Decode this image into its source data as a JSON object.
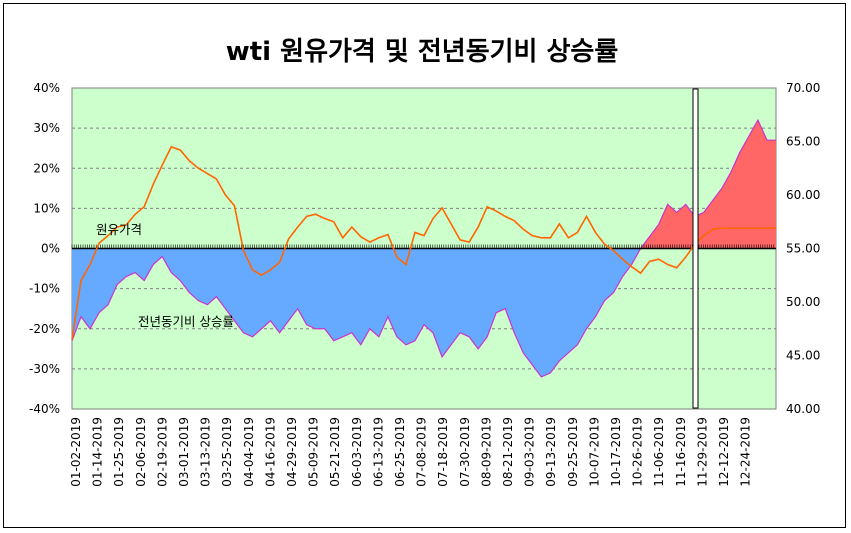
{
  "chart_data": {
    "type": "line+area",
    "title": "wti 원유가격 및 전년동기비 상승률",
    "y_left": {
      "ticks": [
        "40%",
        "30%",
        "20%",
        "10%",
        "0%",
        "-10%",
        "-20%",
        "-30%",
        "-40%"
      ],
      "range": [
        -40,
        40
      ],
      "unit": "%"
    },
    "y_right": {
      "ticks": [
        "70.00",
        "65.00",
        "60.00",
        "55.00",
        "50.00",
        "45.00",
        "40.00"
      ],
      "range": [
        40,
        70
      ]
    },
    "x_labels": [
      "01-02-2019",
      "01-14-2019",
      "01-25-2019",
      "02-06-2019",
      "02-19-2019",
      "03-01-2019",
      "03-13-2019",
      "03-25-2019",
      "04-04-2019",
      "04-16-2019",
      "04-29-2019",
      "05-09-2019",
      "05-21-2019",
      "06-03-2019",
      "06-13-2019",
      "06-25-2019",
      "07-08-2019",
      "07-18-2019",
      "07-30-2019",
      "08-09-2019",
      "08-21-2019",
      "09-03-2019",
      "09-13-2019",
      "09-25-2019",
      "10-07-2019",
      "10-17-2019",
      "10-26-2019",
      "11-06-2019",
      "11-16-2019",
      "11-29-2019",
      "12-12-2019",
      "12-24-2019"
    ],
    "series": [
      {
        "name": "원유가격",
        "axis": "right",
        "color": "#FF6600",
        "values": [
          46.5,
          52.0,
          53.5,
          55.5,
          56.2,
          57.0,
          57.2,
          58.2,
          58.9,
          61.0,
          62.8,
          64.5,
          64.2,
          63.2,
          62.5,
          62.0,
          61.5,
          60.0,
          59.0,
          54.8,
          53.0,
          52.5,
          53.0,
          53.7,
          55.9,
          57.0,
          58.0,
          58.2,
          57.8,
          57.5,
          56.0,
          57.0,
          56.1,
          55.6,
          56.0,
          56.3,
          54.2,
          53.5,
          56.5,
          56.2,
          57.8,
          58.8,
          57.3,
          55.8,
          55.6,
          57.0,
          58.9,
          58.5,
          58.0,
          57.6,
          56.8,
          56.2,
          56.0,
          56.0,
          57.3,
          56.0,
          56.5,
          58.0,
          56.5,
          55.4,
          54.8,
          54.0,
          53.3,
          52.7,
          53.8,
          54.0,
          53.5,
          53.2,
          54.2,
          55.4,
          56.2,
          56.8,
          56.9,
          56.9,
          56.9,
          56.9,
          56.9,
          56.9,
          56.9
        ]
      },
      {
        "name": "전년동기비 상승률",
        "axis": "left",
        "color": "#66AAFF",
        "negative_color": "#66AAFF",
        "positive_color": "#FF6666",
        "edge_color": "#CC33CC",
        "values": [
          -23,
          -17,
          -20,
          -16,
          -14,
          -9,
          -7,
          -6,
          -8,
          -4,
          -2,
          -6,
          -8,
          -11,
          -13,
          -14,
          -12,
          -15,
          -18,
          -21,
          -22,
          -20,
          -18,
          -21,
          -18,
          -15,
          -19,
          -20,
          -20,
          -23,
          -22,
          -21,
          -24,
          -20,
          -22,
          -17,
          -22,
          -24,
          -23,
          -19,
          -21,
          -27,
          -24,
          -21,
          -22,
          -25,
          -22,
          -16,
          -15,
          -21,
          -26,
          -29,
          -32,
          -31,
          -28,
          -26,
          -24,
          -20,
          -17,
          -13,
          -11,
          -7,
          -4,
          0,
          3,
          6,
          11,
          9,
          11,
          8,
          9,
          12,
          15,
          19,
          24,
          28,
          32,
          27,
          27
        ]
      }
    ],
    "annotations": [
      {
        "text": "원유가격"
      },
      {
        "text": "전년동기비 상승률"
      }
    ],
    "plot_background": "#CCFFCC",
    "gridlines": true
  }
}
